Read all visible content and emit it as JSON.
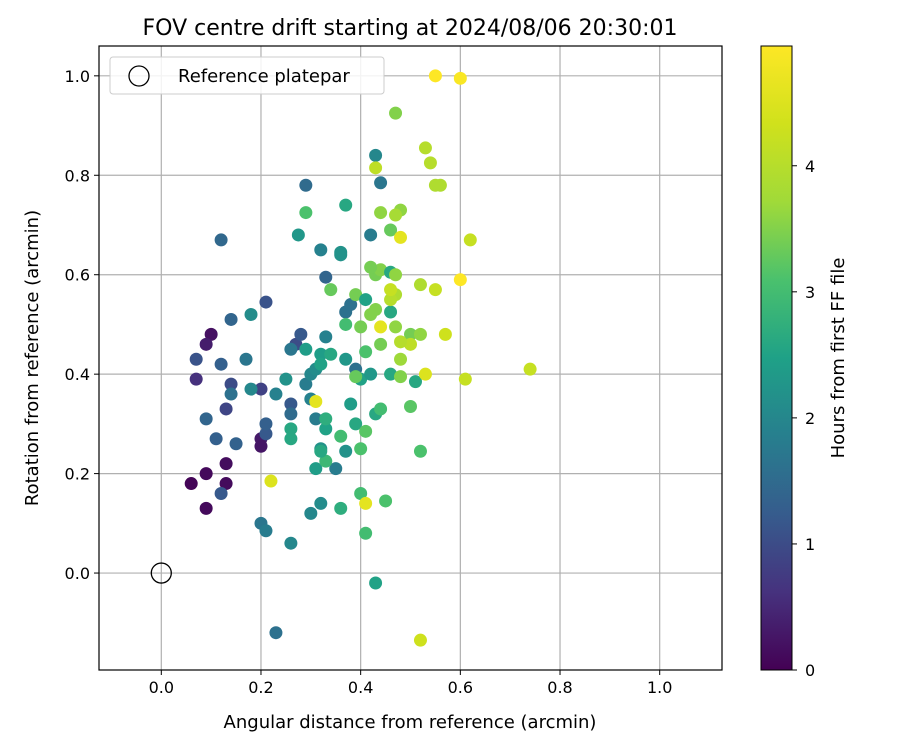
{
  "chart_data": {
    "type": "scatter",
    "title": "FOV centre drift starting at 2024/08/06 20:30:01",
    "xlabel": "Angular distance from reference (arcmin)",
    "ylabel": "Rotation from reference (arcmin)",
    "xlim": [
      -0.125,
      1.125
    ],
    "ylim": [
      -0.195,
      1.06
    ],
    "xticks": [
      0.0,
      0.2,
      0.4,
      0.6,
      0.8,
      1.0
    ],
    "xtick_labels": [
      "0.0",
      "0.2",
      "0.4",
      "0.6",
      "0.8",
      "1.0"
    ],
    "yticks": [
      0.0,
      0.2,
      0.4,
      0.6,
      0.8,
      1.0
    ],
    "ytick_labels": [
      "0.0",
      "0.2",
      "0.4",
      "0.6",
      "0.8",
      "1.0"
    ],
    "grid": true,
    "legend": {
      "placement": "top-left",
      "entries": [
        "Reference platepar"
      ]
    },
    "colorbar": {
      "label": "Hours from first FF file",
      "colormap": "viridis",
      "range": [
        0,
        4.95
      ],
      "ticks": [
        0,
        1,
        2,
        3,
        4
      ],
      "tick_labels": [
        "0",
        "1",
        "2",
        "3",
        "4"
      ]
    },
    "reference": {
      "x": 0.0,
      "y": 0.0,
      "name": "Reference platepar"
    },
    "points": [
      [
        0.06,
        0.18,
        0.05
      ],
      [
        0.09,
        0.13,
        0.1
      ],
      [
        0.09,
        0.2,
        0.1
      ],
      [
        0.13,
        0.18,
        0.12
      ],
      [
        0.13,
        0.22,
        0.15
      ],
      [
        0.1,
        0.48,
        0.2
      ],
      [
        0.09,
        0.46,
        0.35
      ],
      [
        0.07,
        0.39,
        0.6
      ],
      [
        0.2,
        0.27,
        0.3
      ],
      [
        0.2,
        0.255,
        0.25
      ],
      [
        0.07,
        0.43,
        1.1
      ],
      [
        0.13,
        0.33,
        0.9
      ],
      [
        0.14,
        0.38,
        1.0
      ],
      [
        0.2,
        0.37,
        0.85
      ],
      [
        0.21,
        0.28,
        1.2
      ],
      [
        0.21,
        0.3,
        1.3
      ],
      [
        0.11,
        0.27,
        1.3
      ],
      [
        0.15,
        0.26,
        1.35
      ],
      [
        0.12,
        0.16,
        1.2
      ],
      [
        0.09,
        0.31,
        1.4
      ],
      [
        0.12,
        0.42,
        1.3
      ],
      [
        0.14,
        0.36,
        1.6
      ],
      [
        0.14,
        0.51,
        1.4
      ],
      [
        0.21,
        0.545,
        1.1
      ],
      [
        0.12,
        0.67,
        1.45
      ],
      [
        0.17,
        0.43,
        1.7
      ],
      [
        0.18,
        0.52,
        2.1
      ],
      [
        0.18,
        0.37,
        2.0
      ],
      [
        0.2,
        0.1,
        1.7
      ],
      [
        0.21,
        0.085,
        1.8
      ],
      [
        0.23,
        0.36,
        1.9
      ],
      [
        0.26,
        0.06,
        2.0
      ],
      [
        0.23,
        -0.12,
        1.6
      ],
      [
        0.26,
        0.34,
        1.2
      ],
      [
        0.26,
        0.32,
        1.5
      ],
      [
        0.27,
        0.46,
        1.0
      ],
      [
        0.28,
        0.48,
        1.2
      ],
      [
        0.26,
        0.45,
        1.7
      ],
      [
        0.29,
        0.38,
        1.8
      ],
      [
        0.29,
        0.45,
        2.4
      ],
      [
        0.25,
        0.39,
        2.2
      ],
      [
        0.26,
        0.29,
        2.6
      ],
      [
        0.26,
        0.27,
        2.6
      ],
      [
        0.3,
        0.35,
        1.9
      ],
      [
        0.3,
        0.4,
        2.0
      ],
      [
        0.31,
        0.31,
        1.8
      ],
      [
        0.31,
        0.41,
        2.1
      ],
      [
        0.32,
        0.25,
        2.2
      ],
      [
        0.32,
        0.44,
        2.4
      ],
      [
        0.32,
        0.42,
        2.5
      ],
      [
        0.3,
        0.12,
        2.0
      ],
      [
        0.32,
        0.14,
        2.1
      ],
      [
        0.31,
        0.21,
        2.4
      ],
      [
        0.33,
        0.29,
        2.5
      ],
      [
        0.33,
        0.31,
        2.7
      ],
      [
        0.34,
        0.44,
        2.6
      ],
      [
        0.35,
        0.21,
        1.8
      ],
      [
        0.33,
        0.475,
        1.9
      ],
      [
        0.32,
        0.65,
        1.9
      ],
      [
        0.33,
        0.595,
        1.4
      ],
      [
        0.29,
        0.78,
        1.5
      ],
      [
        0.275,
        0.68,
        2.3
      ],
      [
        0.29,
        0.725,
        3.1
      ],
      [
        0.33,
        0.225,
        2.9
      ],
      [
        0.32,
        0.245,
        2.6
      ],
      [
        0.36,
        0.275,
        3.0
      ],
      [
        0.36,
        0.13,
        2.7
      ],
      [
        0.37,
        0.245,
        2.2
      ],
      [
        0.37,
        0.43,
        2.3
      ],
      [
        0.38,
        0.34,
        2.4
      ],
      [
        0.36,
        0.645,
        2.2
      ],
      [
        0.36,
        0.64,
        2.2
      ],
      [
        0.37,
        0.525,
        1.6
      ],
      [
        0.38,
        0.54,
        1.6
      ],
      [
        0.39,
        0.41,
        1.6
      ],
      [
        0.37,
        0.74,
        2.6
      ],
      [
        0.37,
        0.5,
        3.0
      ],
      [
        0.34,
        0.57,
        3.3
      ],
      [
        0.39,
        0.3,
        2.6
      ],
      [
        0.39,
        0.56,
        3.4
      ],
      [
        0.4,
        0.16,
        3.0
      ],
      [
        0.41,
        0.08,
        3.0
      ],
      [
        0.43,
        -0.02,
        2.5
      ],
      [
        0.4,
        0.39,
        2.5
      ],
      [
        0.41,
        0.55,
        2.5
      ],
      [
        0.42,
        0.4,
        2.3
      ],
      [
        0.42,
        0.68,
        1.8
      ],
      [
        0.43,
        0.32,
        2.6
      ],
      [
        0.43,
        0.84,
        2.0
      ],
      [
        0.44,
        0.785,
        1.7
      ],
      [
        0.44,
        0.33,
        3.0
      ],
      [
        0.45,
        0.145,
        3.1
      ],
      [
        0.41,
        0.285,
        3.2
      ],
      [
        0.41,
        0.445,
        3.1
      ],
      [
        0.4,
        0.25,
        3.1
      ],
      [
        0.43,
        0.53,
        3.5
      ],
      [
        0.42,
        0.52,
        3.5
      ],
      [
        0.43,
        0.6,
        3.4
      ],
      [
        0.44,
        0.46,
        3.4
      ],
      [
        0.44,
        0.61,
        3.5
      ],
      [
        0.39,
        0.395,
        3.3
      ],
      [
        0.4,
        0.495,
        3.4
      ],
      [
        0.42,
        0.615,
        3.4
      ],
      [
        0.43,
        0.815,
        4.1
      ],
      [
        0.44,
        0.725,
        3.6
      ],
      [
        0.46,
        0.4,
        2.6
      ],
      [
        0.46,
        0.525,
        2.6
      ],
      [
        0.46,
        0.605,
        2.6
      ],
      [
        0.46,
        0.69,
        3.3
      ],
      [
        0.47,
        0.6,
        3.6
      ],
      [
        0.48,
        0.73,
        3.6
      ],
      [
        0.47,
        0.72,
        3.8
      ],
      [
        0.47,
        0.925,
        3.5
      ],
      [
        0.48,
        0.43,
        3.7
      ],
      [
        0.48,
        0.395,
        3.5
      ],
      [
        0.47,
        0.495,
        3.6
      ],
      [
        0.5,
        0.335,
        3.2
      ],
      [
        0.5,
        0.48,
        3.4
      ],
      [
        0.51,
        0.385,
        2.6
      ],
      [
        0.52,
        0.245,
        3.1
      ],
      [
        0.52,
        0.48,
        3.6
      ],
      [
        0.47,
        0.56,
        3.9
      ],
      [
        0.46,
        0.55,
        4.0
      ],
      [
        0.5,
        0.46,
        4.1
      ],
      [
        0.48,
        0.465,
        4.0
      ],
      [
        0.46,
        0.57,
        4.2
      ],
      [
        0.52,
        0.58,
        3.9
      ],
      [
        0.53,
        0.855,
        4.0
      ],
      [
        0.54,
        0.825,
        4.0
      ],
      [
        0.55,
        0.78,
        3.9
      ],
      [
        0.56,
        0.78,
        3.9
      ],
      [
        0.55,
        0.57,
        4.2
      ],
      [
        0.57,
        0.48,
        4.3
      ],
      [
        0.62,
        0.67,
        4.2
      ],
      [
        0.61,
        0.39,
        4.2
      ],
      [
        0.74,
        0.41,
        4.2
      ],
      [
        0.52,
        -0.135,
        4.3
      ],
      [
        0.53,
        0.4,
        4.5
      ],
      [
        0.48,
        0.675,
        4.6
      ],
      [
        0.44,
        0.495,
        4.6
      ],
      [
        0.41,
        0.14,
        4.6
      ],
      [
        0.22,
        0.185,
        4.5
      ],
      [
        0.31,
        0.345,
        4.6
      ],
      [
        0.6,
        0.59,
        4.95
      ],
      [
        0.55,
        1.0,
        4.95
      ],
      [
        0.6,
        0.995,
        4.9
      ]
    ]
  }
}
